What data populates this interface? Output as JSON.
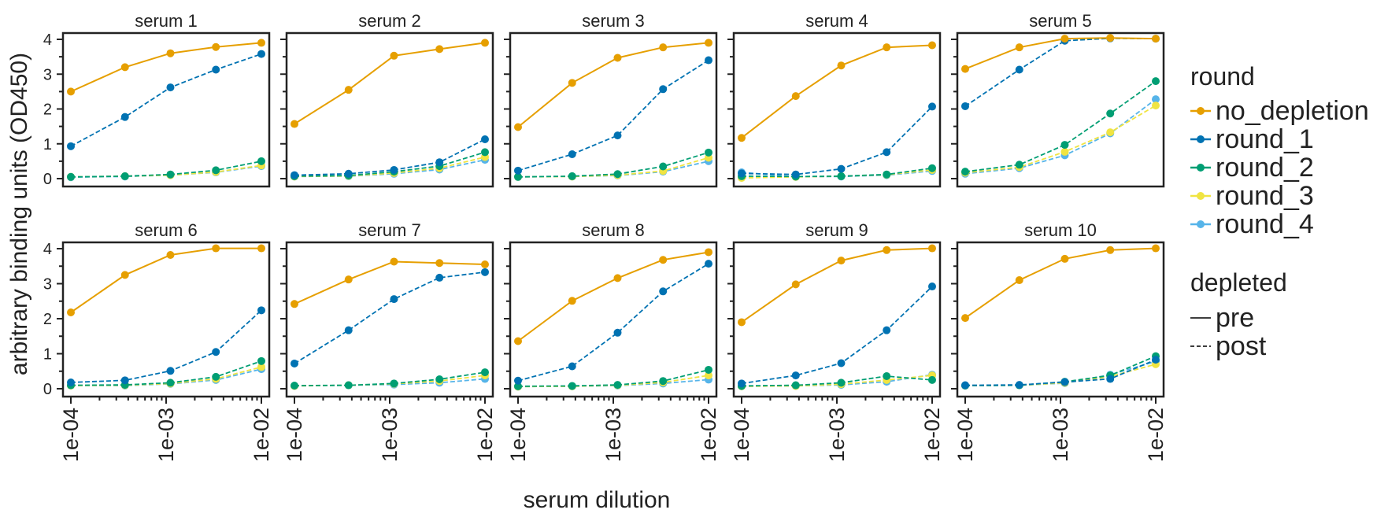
{
  "chart_data": {
    "type": "line",
    "ylabel": "arbitrary binding units (OD450)",
    "xlabel": "serum dilution",
    "x_scale": "log",
    "xlim": [
      0.0001,
      0.01
    ],
    "ylim": [
      0,
      4
    ],
    "x_ticks": [
      0.0001,
      0.001,
      0.01
    ],
    "x_tick_labels": [
      "1e-04",
      "1e-03",
      "1e-02"
    ],
    "y_ticks": [
      0,
      1,
      2,
      3,
      4
    ],
    "y_tick_labels": [
      "0",
      "1",
      "2",
      "3",
      "4"
    ],
    "x": [
      0.0001,
      0.00037,
      0.00111,
      0.00333,
      0.01
    ],
    "legend": {
      "placement": "right",
      "round_title": "round",
      "round_entries": [
        {
          "name": "no_depletion",
          "color": "#E69F00"
        },
        {
          "name": "round_1",
          "color": "#0072B2"
        },
        {
          "name": "round_2",
          "color": "#009E73"
        },
        {
          "name": "round_3",
          "color": "#F0E442"
        },
        {
          "name": "round_4",
          "color": "#56B4E9"
        }
      ],
      "depleted_title": "depleted",
      "depleted_entries": [
        {
          "name": "pre",
          "dash": "solid"
        },
        {
          "name": "post",
          "dash": "dashed"
        }
      ]
    },
    "panels": [
      {
        "title": "serum 1",
        "series": [
          {
            "name": "no_depletion",
            "values": [
              2.5,
              3.2,
              3.6,
              3.78,
              3.9
            ]
          },
          {
            "name": "round_1",
            "values": [
              0.93,
              1.77,
              2.62,
              3.13,
              3.58
            ]
          },
          {
            "name": "round_2",
            "values": [
              0.05,
              0.07,
              0.12,
              0.24,
              0.5
            ]
          },
          {
            "name": "round_3",
            "values": [
              0.05,
              0.07,
              0.1,
              0.19,
              0.38
            ]
          },
          {
            "name": "round_4",
            "values": [
              0.04,
              0.06,
              0.1,
              0.18,
              0.36
            ]
          }
        ]
      },
      {
        "title": "serum 2",
        "series": [
          {
            "name": "no_depletion",
            "values": [
              1.57,
              2.55,
              3.53,
              3.72,
              3.9
            ]
          },
          {
            "name": "round_1",
            "values": [
              0.1,
              0.14,
              0.25,
              0.47,
              1.13
            ]
          },
          {
            "name": "round_2",
            "values": [
              0.07,
              0.09,
              0.2,
              0.36,
              0.76
            ]
          },
          {
            "name": "round_3",
            "values": [
              0.06,
              0.08,
              0.16,
              0.3,
              0.62
            ]
          },
          {
            "name": "round_4",
            "values": [
              0.06,
              0.07,
              0.14,
              0.26,
              0.54
            ]
          }
        ]
      },
      {
        "title": "serum 3",
        "series": [
          {
            "name": "no_depletion",
            "values": [
              1.48,
              2.75,
              3.47,
              3.77,
              3.9
            ]
          },
          {
            "name": "round_1",
            "values": [
              0.23,
              0.7,
              1.24,
              2.57,
              3.4
            ]
          },
          {
            "name": "round_2",
            "values": [
              0.05,
              0.07,
              0.13,
              0.35,
              0.75
            ]
          },
          {
            "name": "round_3",
            "values": [
              0.05,
              0.06,
              0.1,
              0.22,
              0.6
            ]
          },
          {
            "name": "round_4",
            "values": [
              0.05,
              0.06,
              0.09,
              0.2,
              0.5
            ]
          }
        ]
      },
      {
        "title": "serum 4",
        "series": [
          {
            "name": "no_depletion",
            "values": [
              1.17,
              2.37,
              3.25,
              3.77,
              3.83
            ]
          },
          {
            "name": "round_1",
            "values": [
              0.15,
              0.12,
              0.28,
              0.76,
              2.07
            ]
          },
          {
            "name": "round_2",
            "values": [
              0.07,
              0.06,
              0.07,
              0.12,
              0.3
            ]
          },
          {
            "name": "round_3",
            "values": [
              0.02,
              0.05,
              0.07,
              0.11,
              0.25
            ]
          },
          {
            "name": "round_4",
            "values": [
              0.18,
              0.05,
              0.06,
              0.1,
              0.22
            ]
          }
        ]
      },
      {
        "title": "serum 5",
        "series": [
          {
            "name": "no_depletion",
            "values": [
              3.15,
              3.77,
              4.02,
              4.04,
              4.02
            ]
          },
          {
            "name": "round_1",
            "values": [
              2.08,
              3.13,
              3.96,
              4.03,
              4.02
            ]
          },
          {
            "name": "round_2",
            "values": [
              0.2,
              0.4,
              0.97,
              1.87,
              2.8
            ]
          },
          {
            "name": "round_3",
            "values": [
              0.17,
              0.33,
              0.77,
              1.33,
              2.1
            ]
          },
          {
            "name": "round_4",
            "values": [
              0.14,
              0.3,
              0.67,
              1.3,
              2.28
            ]
          }
        ]
      },
      {
        "title": "serum 6",
        "series": [
          {
            "name": "no_depletion",
            "values": [
              2.18,
              3.25,
              3.82,
              4.01,
              4.01
            ]
          },
          {
            "name": "round_1",
            "values": [
              0.18,
              0.24,
              0.51,
              1.05,
              2.24
            ]
          },
          {
            "name": "round_2",
            "values": [
              0.1,
              0.11,
              0.17,
              0.34,
              0.79
            ]
          },
          {
            "name": "round_3",
            "values": [
              0.09,
              0.1,
              0.15,
              0.28,
              0.62
            ]
          },
          {
            "name": "round_4",
            "values": [
              0.09,
              0.09,
              0.14,
              0.25,
              0.56
            ]
          }
        ]
      },
      {
        "title": "serum 7",
        "series": [
          {
            "name": "no_depletion",
            "values": [
              2.42,
              3.12,
              3.63,
              3.59,
              3.55
            ]
          },
          {
            "name": "round_1",
            "values": [
              0.72,
              1.67,
              2.56,
              3.17,
              3.33
            ]
          },
          {
            "name": "round_2",
            "values": [
              0.09,
              0.1,
              0.15,
              0.27,
              0.47
            ]
          },
          {
            "name": "round_3",
            "values": [
              0.08,
              0.1,
              0.14,
              0.22,
              0.38
            ]
          },
          {
            "name": "round_4",
            "values": [
              0.08,
              0.1,
              0.12,
              0.17,
              0.28
            ]
          }
        ]
      },
      {
        "title": "serum 8",
        "series": [
          {
            "name": "no_depletion",
            "values": [
              1.36,
              2.51,
              3.16,
              3.68,
              3.9
            ]
          },
          {
            "name": "round_1",
            "values": [
              0.23,
              0.64,
              1.6,
              2.78,
              3.57
            ]
          },
          {
            "name": "round_2",
            "values": [
              0.07,
              0.08,
              0.11,
              0.22,
              0.54
            ]
          },
          {
            "name": "round_3",
            "values": [
              0.06,
              0.07,
              0.1,
              0.18,
              0.38
            ]
          },
          {
            "name": "round_4",
            "values": [
              0.06,
              0.07,
              0.09,
              0.15,
              0.26
            ]
          }
        ]
      },
      {
        "title": "serum 9",
        "series": [
          {
            "name": "no_depletion",
            "values": [
              1.9,
              2.98,
              3.66,
              3.96,
              4.01
            ]
          },
          {
            "name": "round_1",
            "values": [
              0.15,
              0.38,
              0.73,
              1.67,
              2.92
            ]
          },
          {
            "name": "round_2",
            "values": [
              0.08,
              0.1,
              0.17,
              0.36,
              0.25
            ]
          },
          {
            "name": "round_3",
            "values": [
              0.07,
              0.08,
              0.13,
              0.25,
              0.38
            ]
          },
          {
            "name": "round_4",
            "values": [
              0.07,
              0.08,
              0.11,
              0.2,
              0.4
            ]
          }
        ]
      },
      {
        "title": "serum 10",
        "series": [
          {
            "name": "no_depletion",
            "values": [
              2.02,
              3.1,
              3.71,
              3.96,
              4.01
            ]
          },
          {
            "name": "round_1",
            "values": [
              0.1,
              0.11,
              0.19,
              0.28,
              0.83
            ]
          },
          {
            "name": "round_2",
            "values": [
              0.09,
              0.1,
              0.2,
              0.38,
              0.93
            ]
          },
          {
            "name": "round_3",
            "values": [
              0.09,
              0.1,
              0.17,
              0.35,
              0.7
            ]
          },
          {
            "name": "round_4",
            "values": [
              0.09,
              0.1,
              0.16,
              0.4,
              0.78
            ]
          }
        ]
      }
    ]
  }
}
